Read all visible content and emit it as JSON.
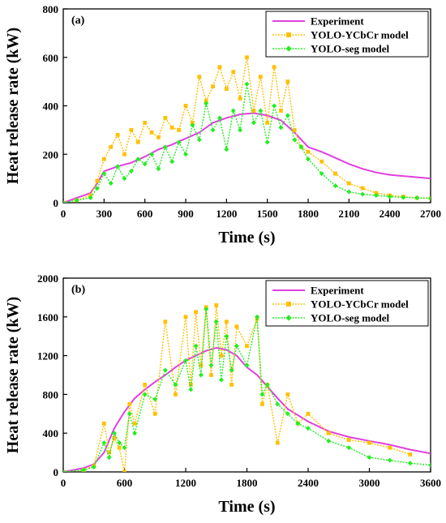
{
  "chart_data": [
    {
      "type": "line",
      "panel_label": "(a)",
      "xlabel": "Time (s)",
      "ylabel": "Heat release rate (kW)",
      "xlim": [
        0,
        2700
      ],
      "ylim": [
        0,
        800
      ],
      "x_ticks": [
        0,
        300,
        600,
        900,
        1200,
        1500,
        1800,
        2100,
        2400,
        2700
      ],
      "y_ticks": [
        0,
        200,
        400,
        600,
        800
      ],
      "legend_position": "top-right",
      "series": [
        {
          "name": "Experiment",
          "color": "#e040e0",
          "marker": "none",
          "x": [
            0,
            100,
            200,
            250,
            300,
            400,
            500,
            600,
            700,
            800,
            900,
            1000,
            1100,
            1200,
            1300,
            1400,
            1500,
            1600,
            1700,
            1800,
            1900,
            2000,
            2100,
            2200,
            2300,
            2400,
            2500,
            2600,
            2700
          ],
          "y": [
            0,
            20,
            40,
            80,
            130,
            150,
            165,
            190,
            220,
            240,
            265,
            290,
            330,
            350,
            365,
            370,
            360,
            340,
            290,
            230,
            210,
            185,
            160,
            140,
            125,
            115,
            110,
            105,
            100
          ]
        },
        {
          "name": "YOLO-YCbCr model",
          "color": "#ffc000",
          "marker": "square",
          "x": [
            0,
            100,
            200,
            250,
            300,
            350,
            400,
            450,
            500,
            550,
            600,
            650,
            700,
            750,
            800,
            850,
            900,
            950,
            1000,
            1050,
            1100,
            1150,
            1200,
            1250,
            1300,
            1350,
            1400,
            1450,
            1500,
            1550,
            1600,
            1650,
            1700,
            1750,
            1800,
            1900,
            2000,
            2100,
            2200,
            2300,
            2400,
            2500,
            2600,
            2700
          ],
          "y": [
            0,
            10,
            30,
            90,
            180,
            230,
            280,
            200,
            300,
            250,
            330,
            290,
            270,
            350,
            310,
            300,
            400,
            330,
            520,
            420,
            480,
            560,
            470,
            540,
            430,
            600,
            380,
            520,
            330,
            560,
            380,
            500,
            300,
            230,
            210,
            170,
            120,
            80,
            60,
            40,
            30,
            25,
            20,
            18
          ]
        },
        {
          "name": "YOLO-seg model",
          "color": "#22ee22",
          "marker": "diamond",
          "x": [
            0,
            100,
            200,
            250,
            300,
            350,
            400,
            450,
            500,
            550,
            600,
            650,
            700,
            750,
            800,
            850,
            900,
            950,
            1000,
            1050,
            1100,
            1150,
            1200,
            1250,
            1300,
            1350,
            1400,
            1450,
            1500,
            1550,
            1600,
            1650,
            1700,
            1750,
            1800,
            1900,
            2000,
            2100,
            2200,
            2300,
            2400,
            2500,
            2600,
            2700
          ],
          "y": [
            0,
            10,
            20,
            60,
            120,
            80,
            150,
            100,
            130,
            180,
            160,
            200,
            140,
            230,
            170,
            250,
            200,
            320,
            260,
            410,
            300,
            350,
            220,
            380,
            300,
            490,
            330,
            380,
            250,
            400,
            310,
            360,
            260,
            230,
            180,
            120,
            70,
            45,
            35,
            30,
            25,
            22,
            20,
            18
          ]
        }
      ]
    },
    {
      "type": "line",
      "panel_label": "(b)",
      "xlabel": "Time (s)",
      "ylabel": "Heat release rate (kW)",
      "xlim": [
        0,
        3600
      ],
      "ylim": [
        0,
        2000
      ],
      "x_ticks": [
        0,
        600,
        1200,
        1800,
        2400,
        3000,
        3600
      ],
      "y_ticks": [
        0,
        400,
        800,
        1200,
        1600,
        2000
      ],
      "legend_position": "top-right",
      "series": [
        {
          "name": "Experiment",
          "color": "#e040e0",
          "marker": "none",
          "x": [
            0,
            200,
            300,
            400,
            500,
            600,
            700,
            800,
            900,
            1000,
            1100,
            1200,
            1300,
            1400,
            1500,
            1600,
            1700,
            1800,
            1900,
            2000,
            2100,
            2200,
            2400,
            2600,
            2800,
            3000,
            3200,
            3400,
            3600
          ],
          "y": [
            0,
            40,
            80,
            200,
            450,
            620,
            760,
            850,
            930,
            1000,
            1080,
            1150,
            1200,
            1250,
            1280,
            1260,
            1200,
            1080,
            1000,
            880,
            760,
            650,
            520,
            420,
            360,
            320,
            280,
            230,
            190
          ]
        },
        {
          "name": "YOLO-YCbCr model",
          "color": "#ffc000",
          "marker": "square",
          "x": [
            0,
            200,
            300,
            400,
            450,
            500,
            550,
            600,
            650,
            700,
            800,
            900,
            1000,
            1100,
            1200,
            1250,
            1300,
            1350,
            1400,
            1450,
            1500,
            1550,
            1600,
            1650,
            1700,
            1800,
            1900,
            1950,
            2000,
            2100,
            2200,
            2300,
            2400,
            2600,
            2800,
            3000,
            3200,
            3400
          ],
          "y": [
            0,
            20,
            60,
            500,
            200,
            350,
            250,
            0,
            700,
            500,
            900,
            600,
            1550,
            800,
            1600,
            900,
            1650,
            1100,
            1700,
            1000,
            1720,
            1200,
            1550,
            900,
            1500,
            1300,
            1580,
            700,
            900,
            300,
            800,
            500,
            600,
            400,
            330,
            300,
            250,
            180
          ]
        },
        {
          "name": "YOLO-seg model",
          "color": "#22ee22",
          "marker": "diamond",
          "x": [
            0,
            200,
            300,
            400,
            450,
            500,
            550,
            600,
            650,
            700,
            800,
            900,
            1000,
            1100,
            1200,
            1250,
            1300,
            1350,
            1400,
            1450,
            1500,
            1550,
            1600,
            1650,
            1700,
            1800,
            1900,
            1950,
            2000,
            2100,
            2200,
            2300,
            2400,
            2600,
            2800,
            3000,
            3200,
            3400,
            3600
          ],
          "y": [
            0,
            20,
            50,
            300,
            150,
            400,
            300,
            250,
            600,
            400,
            800,
            750,
            1050,
            900,
            1150,
            850,
            1300,
            1000,
            1680,
            1100,
            1550,
            950,
            1400,
            1050,
            1300,
            1100,
            1600,
            800,
            900,
            700,
            600,
            500,
            450,
            320,
            250,
            150,
            120,
            90,
            70
          ]
        }
      ]
    }
  ]
}
